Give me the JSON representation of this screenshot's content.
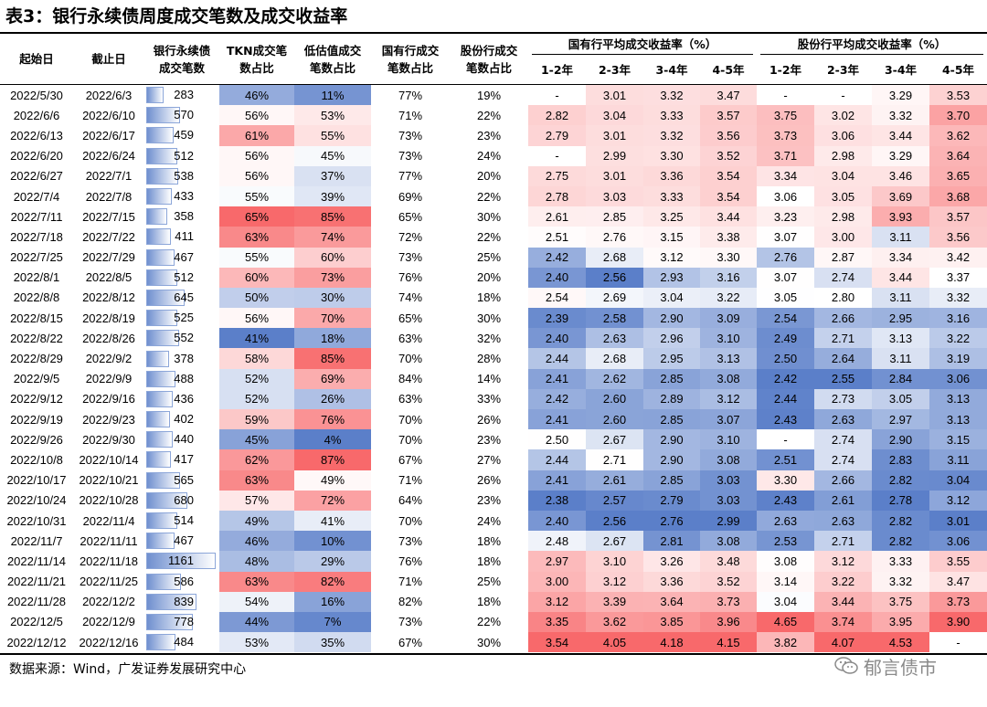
{
  "title": "表3：银行永续债周度成交笔数及成交收益率",
  "headers": {
    "start": "起始日",
    "end": "截止日",
    "count_l1": "银行永续债",
    "count_l2": "成交笔数",
    "tkn_l1": "TKN成交笔",
    "tkn_l2": "数占比",
    "low_l1": "低估值成交",
    "low_l2": "笔数占比",
    "state_l1": "国有行成交",
    "state_l2": "笔数占比",
    "joint_l1": "股份行成交",
    "joint_l2": "笔数占比",
    "group_state": "国有行平均成交收益率（%）",
    "group_joint": "股份行平均成交收益率（%）",
    "tenors": [
      "1-2年",
      "2-3年",
      "3-4年",
      "4-5年"
    ]
  },
  "rows": [
    {
      "start": "2022/5/30",
      "end": "2022/6/3",
      "count": "283",
      "tkn": "46%",
      "low": "11%",
      "state": "77%",
      "joint": "19%",
      "sy": [
        "-",
        "3.01",
        "3.32",
        "3.47"
      ],
      "jy": [
        "-",
        "-",
        "3.29",
        "3.53"
      ]
    },
    {
      "start": "2022/6/6",
      "end": "2022/6/10",
      "count": "570",
      "tkn": "56%",
      "low": "53%",
      "state": "71%",
      "joint": "22%",
      "sy": [
        "2.82",
        "3.04",
        "3.33",
        "3.57"
      ],
      "jy": [
        "3.75",
        "3.02",
        "3.32",
        "3.70"
      ]
    },
    {
      "start": "2022/6/13",
      "end": "2022/6/17",
      "count": "459",
      "tkn": "61%",
      "low": "55%",
      "state": "73%",
      "joint": "23%",
      "sy": [
        "2.79",
        "3.01",
        "3.32",
        "3.56"
      ],
      "jy": [
        "3.73",
        "3.06",
        "3.44",
        "3.62"
      ]
    },
    {
      "start": "2022/6/20",
      "end": "2022/6/24",
      "count": "512",
      "tkn": "56%",
      "low": "45%",
      "state": "73%",
      "joint": "24%",
      "sy": [
        "-",
        "2.99",
        "3.30",
        "3.52"
      ],
      "jy": [
        "3.71",
        "2.98",
        "3.29",
        "3.64"
      ]
    },
    {
      "start": "2022/6/27",
      "end": "2022/7/1",
      "count": "538",
      "tkn": "56%",
      "low": "37%",
      "state": "77%",
      "joint": "20%",
      "sy": [
        "2.75",
        "3.01",
        "3.36",
        "3.54"
      ],
      "jy": [
        "3.34",
        "3.04",
        "3.46",
        "3.65"
      ]
    },
    {
      "start": "2022/7/4",
      "end": "2022/7/8",
      "count": "433",
      "tkn": "55%",
      "low": "39%",
      "state": "69%",
      "joint": "22%",
      "sy": [
        "2.78",
        "3.03",
        "3.33",
        "3.54"
      ],
      "jy": [
        "3.06",
        "3.05",
        "3.69",
        "3.68"
      ]
    },
    {
      "start": "2022/7/11",
      "end": "2022/7/15",
      "count": "358",
      "tkn": "65%",
      "low": "85%",
      "state": "65%",
      "joint": "30%",
      "sy": [
        "2.61",
        "2.85",
        "3.25",
        "3.44"
      ],
      "jy": [
        "3.23",
        "2.98",
        "3.93",
        "3.57"
      ]
    },
    {
      "start": "2022/7/18",
      "end": "2022/7/22",
      "count": "411",
      "tkn": "63%",
      "low": "74%",
      "state": "72%",
      "joint": "22%",
      "sy": [
        "2.51",
        "2.76",
        "3.15",
        "3.38"
      ],
      "jy": [
        "3.07",
        "3.00",
        "3.11",
        "3.56"
      ]
    },
    {
      "start": "2022/7/25",
      "end": "2022/7/29",
      "count": "467",
      "tkn": "55%",
      "low": "60%",
      "state": "73%",
      "joint": "25%",
      "sy": [
        "2.42",
        "2.68",
        "3.12",
        "3.30"
      ],
      "jy": [
        "2.76",
        "2.87",
        "3.34",
        "3.42"
      ]
    },
    {
      "start": "2022/8/1",
      "end": "2022/8/5",
      "count": "512",
      "tkn": "60%",
      "low": "73%",
      "state": "76%",
      "joint": "20%",
      "sy": [
        "2.40",
        "2.56",
        "2.93",
        "3.16"
      ],
      "jy": [
        "3.07",
        "2.74",
        "3.44",
        "3.37"
      ]
    },
    {
      "start": "2022/8/8",
      "end": "2022/8/12",
      "count": "645",
      "tkn": "50%",
      "low": "30%",
      "state": "74%",
      "joint": "18%",
      "sy": [
        "2.54",
        "2.69",
        "3.04",
        "3.22"
      ],
      "jy": [
        "3.05",
        "2.80",
        "3.11",
        "3.32"
      ]
    },
    {
      "start": "2022/8/15",
      "end": "2022/8/19",
      "count": "525",
      "tkn": "56%",
      "low": "70%",
      "state": "65%",
      "joint": "30%",
      "sy": [
        "2.39",
        "2.58",
        "2.90",
        "3.09"
      ],
      "jy": [
        "2.54",
        "2.66",
        "2.95",
        "3.16"
      ]
    },
    {
      "start": "2022/8/22",
      "end": "2022/8/26",
      "count": "552",
      "tkn": "41%",
      "low": "18%",
      "state": "63%",
      "joint": "32%",
      "sy": [
        "2.40",
        "2.63",
        "2.96",
        "3.10"
      ],
      "jy": [
        "2.49",
        "2.71",
        "3.13",
        "3.22"
      ]
    },
    {
      "start": "2022/8/29",
      "end": "2022/9/2",
      "count": "378",
      "tkn": "58%",
      "low": "85%",
      "state": "70%",
      "joint": "28%",
      "sy": [
        "2.44",
        "2.68",
        "2.95",
        "3.13"
      ],
      "jy": [
        "2.50",
        "2.64",
        "3.11",
        "3.19"
      ]
    },
    {
      "start": "2022/9/5",
      "end": "2022/9/9",
      "count": "488",
      "tkn": "52%",
      "low": "69%",
      "state": "84%",
      "joint": "14%",
      "sy": [
        "2.41",
        "2.62",
        "2.85",
        "3.08"
      ],
      "jy": [
        "2.42",
        "2.55",
        "2.84",
        "3.06"
      ]
    },
    {
      "start": "2022/9/12",
      "end": "2022/9/16",
      "count": "436",
      "tkn": "52%",
      "low": "26%",
      "state": "63%",
      "joint": "33%",
      "sy": [
        "2.42",
        "2.60",
        "2.89",
        "3.12"
      ],
      "jy": [
        "2.44",
        "2.73",
        "3.05",
        "3.13"
      ]
    },
    {
      "start": "2022/9/19",
      "end": "2022/9/23",
      "count": "402",
      "tkn": "59%",
      "low": "76%",
      "state": "70%",
      "joint": "26%",
      "sy": [
        "2.41",
        "2.60",
        "2.85",
        "3.07"
      ],
      "jy": [
        "2.43",
        "2.63",
        "2.97",
        "3.13"
      ]
    },
    {
      "start": "2022/9/26",
      "end": "2022/9/30",
      "count": "440",
      "tkn": "45%",
      "low": "4%",
      "state": "70%",
      "joint": "23%",
      "sy": [
        "2.50",
        "2.67",
        "2.90",
        "3.10"
      ],
      "jy": [
        "-",
        "2.74",
        "2.90",
        "3.15"
      ]
    },
    {
      "start": "2022/10/8",
      "end": "2022/10/14",
      "count": "417",
      "tkn": "62%",
      "low": "87%",
      "state": "67%",
      "joint": "27%",
      "sy": [
        "2.44",
        "2.71",
        "2.90",
        "3.08"
      ],
      "jy": [
        "2.51",
        "2.74",
        "2.83",
        "3.11"
      ]
    },
    {
      "start": "2022/10/17",
      "end": "2022/10/21",
      "count": "565",
      "tkn": "63%",
      "low": "49%",
      "state": "71%",
      "joint": "26%",
      "sy": [
        "2.41",
        "2.61",
        "2.85",
        "3.03"
      ],
      "jy": [
        "3.30",
        "2.66",
        "2.82",
        "3.04"
      ]
    },
    {
      "start": "2022/10/24",
      "end": "2022/10/28",
      "count": "680",
      "tkn": "57%",
      "low": "72%",
      "state": "64%",
      "joint": "23%",
      "sy": [
        "2.38",
        "2.57",
        "2.79",
        "3.03"
      ],
      "jy": [
        "2.43",
        "2.61",
        "2.78",
        "3.12"
      ]
    },
    {
      "start": "2022/10/31",
      "end": "2022/11/4",
      "count": "514",
      "tkn": "49%",
      "low": "41%",
      "state": "70%",
      "joint": "24%",
      "sy": [
        "2.40",
        "2.56",
        "2.76",
        "2.99"
      ],
      "jy": [
        "2.63",
        "2.63",
        "2.82",
        "3.01"
      ]
    },
    {
      "start": "2022/11/7",
      "end": "2022/11/11",
      "count": "467",
      "tkn": "46%",
      "low": "10%",
      "state": "73%",
      "joint": "18%",
      "sy": [
        "2.48",
        "2.67",
        "2.81",
        "3.08"
      ],
      "jy": [
        "2.53",
        "2.71",
        "2.82",
        "3.06"
      ]
    },
    {
      "start": "2022/11/14",
      "end": "2022/11/18",
      "count": "1161",
      "tkn": "48%",
      "low": "29%",
      "state": "76%",
      "joint": "18%",
      "sy": [
        "2.97",
        "3.10",
        "3.26",
        "3.48"
      ],
      "jy": [
        "3.08",
        "3.12",
        "3.33",
        "3.55"
      ]
    },
    {
      "start": "2022/11/21",
      "end": "2022/11/25",
      "count": "586",
      "tkn": "63%",
      "low": "82%",
      "state": "71%",
      "joint": "25%",
      "sy": [
        "3.00",
        "3.12",
        "3.36",
        "3.52"
      ],
      "jy": [
        "3.14",
        "3.22",
        "3.32",
        "3.47"
      ]
    },
    {
      "start": "2022/11/28",
      "end": "2022/12/2",
      "count": "839",
      "tkn": "54%",
      "low": "16%",
      "state": "82%",
      "joint": "18%",
      "sy": [
        "3.12",
        "3.39",
        "3.64",
        "3.73"
      ],
      "jy": [
        "3.04",
        "3.44",
        "3.75",
        "3.73"
      ]
    },
    {
      "start": "2022/12/5",
      "end": "2022/12/9",
      "count": "778",
      "tkn": "44%",
      "low": "7%",
      "state": "73%",
      "joint": "22%",
      "sy": [
        "3.35",
        "3.62",
        "3.85",
        "3.96"
      ],
      "jy": [
        "4.65",
        "3.74",
        "3.95",
        "3.90"
      ]
    },
    {
      "start": "2022/12/12",
      "end": "2022/12/16",
      "count": "484",
      "tkn": "53%",
      "low": "35%",
      "state": "67%",
      "joint": "30%",
      "sy": [
        "3.54",
        "4.05",
        "4.18",
        "4.15"
      ],
      "jy": [
        "3.82",
        "4.07",
        "4.53",
        "-"
      ]
    }
  ],
  "footer": "数据来源：Wind，广发证券发展研究中心",
  "watermark": "郁言债市",
  "colors": {
    "blue": "#5b7fc9",
    "red": "#f8696b",
    "white": "#ffffff",
    "bar": "#6f8fcf"
  }
}
